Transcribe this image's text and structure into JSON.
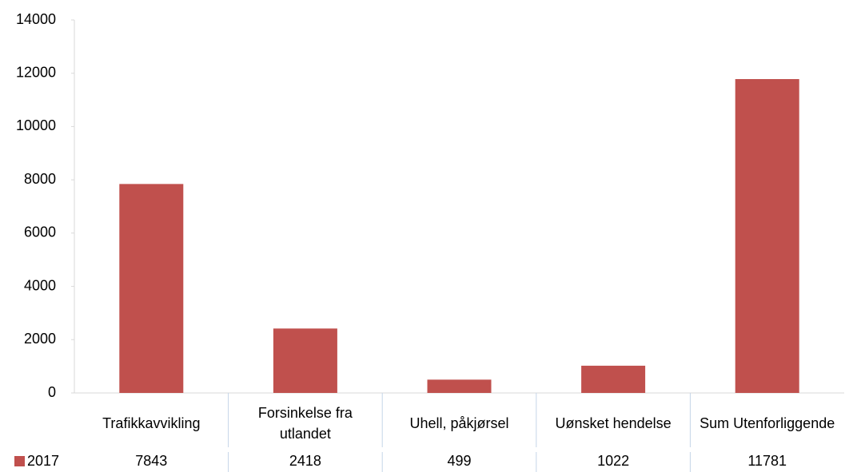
{
  "chart_data": {
    "type": "bar",
    "categories": [
      "Trafikkavvikling",
      "Forsinkelse fra utlandet",
      "Uhell, påkjørsel",
      "Uønsket hendelse",
      "Sum Utenforliggende"
    ],
    "series": [
      {
        "name": "2017",
        "color": "#c0504d",
        "values": [
          7843,
          2418,
          499,
          1022,
          11781
        ]
      }
    ],
    "ylim": [
      0,
      14000
    ],
    "yticks": [
      0,
      2000,
      4000,
      6000,
      8000,
      10000,
      12000,
      14000
    ],
    "grid": false,
    "legend": "bottom-left",
    "data_table": true
  }
}
